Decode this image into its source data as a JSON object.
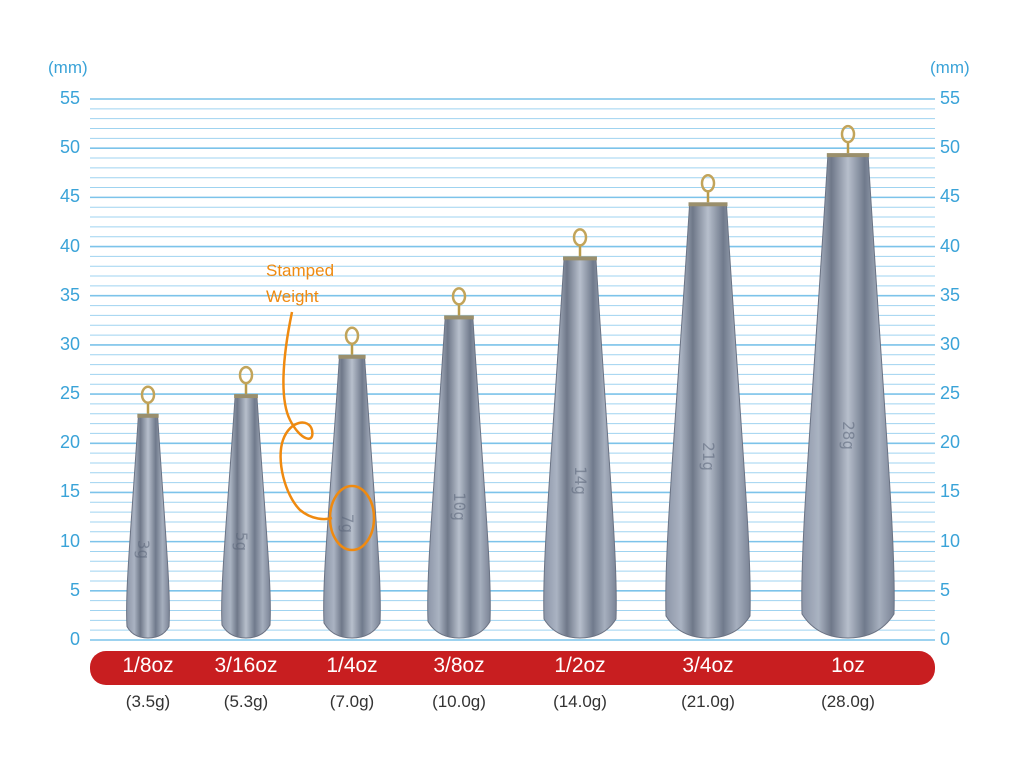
{
  "axis": {
    "unit_left": "(mm)",
    "unit_right": "(mm)",
    "ticks": [
      "55",
      "50",
      "45",
      "40",
      "35",
      "30",
      "25",
      "20",
      "15",
      "10",
      "5",
      "0"
    ],
    "max": 55
  },
  "annotation": {
    "line1": "Stamped",
    "line2": "Weight"
  },
  "colors": {
    "axis_text": "#3aa3d8",
    "gridline": "#9fd3f0",
    "bar": "#c81e20",
    "annotation": "#ef8a10"
  },
  "sinkers": [
    {
      "oz": "1/8oz",
      "gram": "(3.5g)",
      "height_mm": 23,
      "stamp": "3g"
    },
    {
      "oz": "3/16oz",
      "gram": "(5.3g)",
      "height_mm": 25,
      "stamp": "5g"
    },
    {
      "oz": "1/4oz",
      "gram": "(7.0g)",
      "height_mm": 29,
      "stamp": "7g"
    },
    {
      "oz": "3/8oz",
      "gram": "(10.0g)",
      "height_mm": 33,
      "stamp": "10g"
    },
    {
      "oz": "1/2oz",
      "gram": "(14.0g)",
      "height_mm": 39,
      "stamp": "14g"
    },
    {
      "oz": "3/4oz",
      "gram": "(21.0g)",
      "height_mm": 44.5,
      "stamp": "21g"
    },
    {
      "oz": "1oz",
      "gram": "(28.0g)",
      "height_mm": 49.5,
      "stamp": "28g"
    }
  ]
}
